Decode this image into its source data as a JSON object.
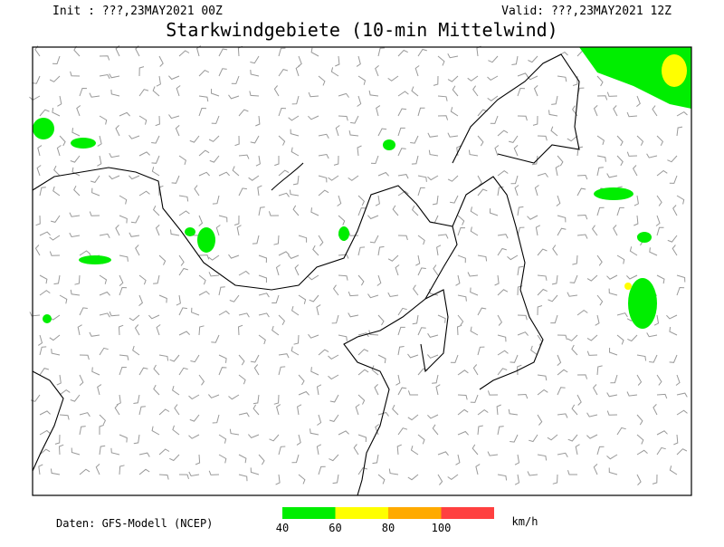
{
  "header": {
    "init": "Init : ???,23MAY2021 00Z",
    "valid": "Valid: ???,23MAY2021 12Z",
    "title": "Starkwindgebiete (10-min Mittelwind)"
  },
  "footer": {
    "source": "Daten: GFS-Modell (NCEP)"
  },
  "legend": {
    "colors": [
      "#00ee00",
      "#ffff00",
      "#ffaa00",
      "#ff4040"
    ],
    "labels": [
      "40",
      "60",
      "80",
      "100"
    ],
    "unit": "km/h"
  }
}
